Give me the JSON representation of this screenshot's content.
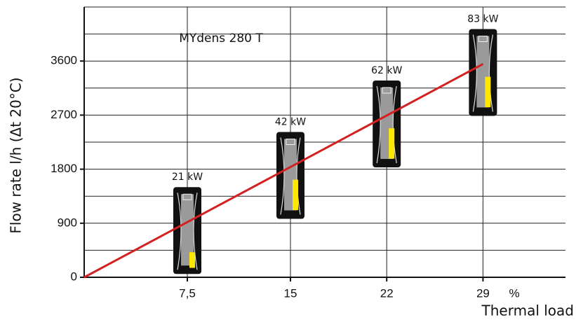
{
  "chart_data": {
    "type": "line",
    "title": "MYdens 280 T",
    "y_label": "Flow rate l/h (Δt 20°C)",
    "x_label": "Thermal load",
    "x_unit": "%",
    "x": [
      0,
      29
    ],
    "series": [
      {
        "name": "Flow rate",
        "color": "#d42020",
        "values": [
          0,
          3550
        ]
      }
    ],
    "xlim": [
      0,
      35
    ],
    "xticks": [
      {
        "value": 7.5,
        "label": "7,5"
      },
      15,
      22,
      29
    ],
    "ylim": [
      0,
      4500
    ],
    "yticks": [
      0,
      900,
      1800,
      2700,
      3600
    ],
    "ygrid": [
      450,
      900,
      1350,
      1800,
      2250,
      2700,
      3150,
      3600,
      4050,
      4500
    ],
    "grid": true,
    "annotations": [
      {
        "text": "21 kW",
        "x": 7.5
      },
      {
        "text": "42 kW",
        "x": 15
      },
      {
        "text": "62 kW",
        "x": 22
      },
      {
        "text": "83 kW",
        "x": 29
      }
    ]
  }
}
